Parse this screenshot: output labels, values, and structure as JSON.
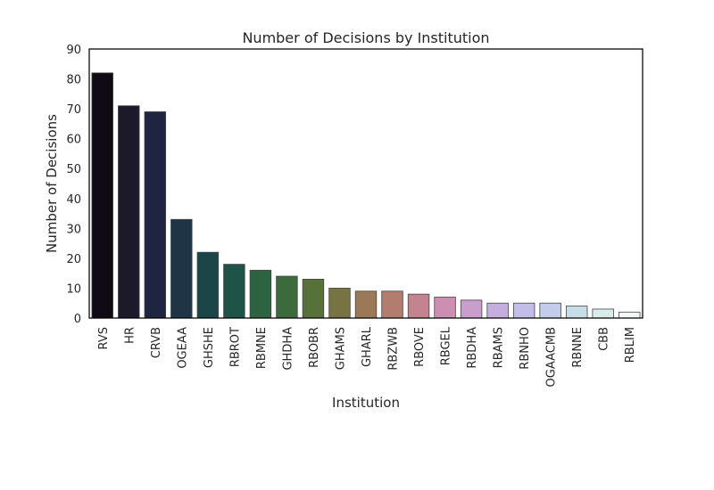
{
  "chart_data": {
    "type": "bar",
    "title": "Number of Decisions by Institution",
    "xlabel": "Institution",
    "ylabel": "Number of Decisions",
    "ylim": [
      0,
      90
    ],
    "yticks": [
      0,
      10,
      20,
      30,
      40,
      50,
      60,
      70,
      80,
      90
    ],
    "grid": false,
    "categories": [
      "RVS",
      "HR",
      "CRVB",
      "OGEAA",
      "GHSHE",
      "RBROT",
      "RBMNE",
      "GHDHA",
      "RBOBR",
      "GHAMS",
      "GHARL",
      "RBZWB",
      "RBOVE",
      "RBGEL",
      "RBDHA",
      "RBAMS",
      "RBNHO",
      "OGAACMB",
      "RBNNE",
      "CBB",
      "RBLIM"
    ],
    "values": [
      82,
      71,
      69,
      33,
      22,
      18,
      16,
      14,
      13,
      10,
      9,
      9,
      8,
      7,
      6,
      5,
      5,
      5,
      4,
      3,
      2
    ],
    "colors": [
      "#0f0a14",
      "#1c1a2a",
      "#1f2440",
      "#1e3447",
      "#1b4648",
      "#1d5447",
      "#2c6441",
      "#3c6b3b",
      "#56723a",
      "#787342",
      "#9b7956",
      "#b27d6f",
      "#c4848f",
      "#cd8fb1",
      "#c99ecd",
      "#c4aee0",
      "#c3bde9",
      "#c3cdeb",
      "#c7dde8",
      "#d8ece9",
      "#f0f8f5"
    ]
  }
}
